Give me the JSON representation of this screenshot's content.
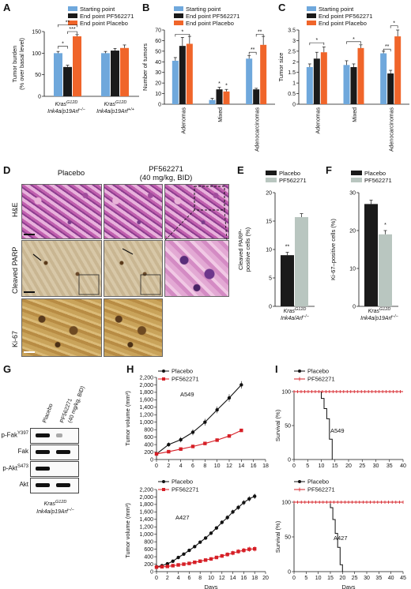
{
  "panels": {
    "A": "A",
    "B": "B",
    "C": "C",
    "D": "D",
    "E": "E",
    "F": "F",
    "G": "G",
    "H": "H",
    "I": "I"
  },
  "colors": {
    "starting": "#6fa8dc",
    "pf": "#1a1a1a",
    "placebo": "#f0652a",
    "pf_grey": "#b9c6c0",
    "placebo_line": "#111111",
    "pf_line": "#d61f26"
  },
  "legend_abc": [
    "Starting point",
    "End point PF562271",
    "End point Placebo"
  ],
  "legend_ef": [
    "Placebo",
    "PF562271"
  ],
  "legend_hi": [
    "Placebo",
    "PF562271"
  ],
  "genotype": {
    "kras": "Kras",
    "g12d": "G12D",
    "ink_null": "Ink4a/p19Arf",
    "ink_null_sup": "−/−",
    "ink_wt_sup": "+/+",
    "arf_null": "Ink4a/Arf"
  },
  "panelD": {
    "col_placebo": "Placebo",
    "col_pf": "PF562271",
    "col_pf_dose": "(40 mg/kg, BID)",
    "rows": [
      "H&E",
      "Cleaved PARP",
      "Ki-67"
    ]
  },
  "panelG": {
    "lanes": [
      "Placebo",
      "PF562271",
      "(40 mg/kg, BID)"
    ],
    "blots": [
      "p-Fak",
      "Fak",
      "p-Akt",
      "Akt"
    ],
    "blot_sups": [
      "Y397",
      "",
      "S473",
      ""
    ]
  },
  "chart_data": [
    {
      "id": "A",
      "type": "bar",
      "ylabel": "Tumor burden",
      "ylabel2": "(% over basal level)",
      "ylim": [
        0,
        150
      ],
      "yticks": [
        0,
        50,
        100,
        150
      ],
      "categories": [
        "Kras G12D Ink4a/p19Arf −/−",
        "Kras G12D Ink4a/p19Arf +/+"
      ],
      "series": [
        {
          "name": "Starting point",
          "values": [
            100,
            100
          ],
          "err": [
            4,
            4
          ]
        },
        {
          "name": "End point PF562271",
          "values": [
            68,
            106
          ],
          "err": [
            4,
            5
          ]
        },
        {
          "name": "End point Placebo",
          "values": [
            139,
            112
          ],
          "err": [
            4,
            7
          ]
        }
      ],
      "annotations": [
        "*",
        "***",
        "**"
      ]
    },
    {
      "id": "B",
      "type": "bar",
      "ylabel": "Number of tumors",
      "ylim": [
        0,
        70
      ],
      "yticks": [
        0,
        10,
        20,
        30,
        40,
        50,
        60,
        70
      ],
      "categories": [
        "Adenomas",
        "Mixed",
        "Adenocarcinomas"
      ],
      "series": [
        {
          "name": "Starting point",
          "values": [
            41,
            4,
            43
          ],
          "err": [
            3,
            1.5,
            3
          ]
        },
        {
          "name": "End point PF562271",
          "values": [
            55,
            14,
            14
          ],
          "err": [
            8,
            2,
            1
          ]
        },
        {
          "name": "End point Placebo",
          "values": [
            57,
            12,
            56
          ],
          "err": [
            7,
            2,
            8
          ]
        }
      ],
      "annotations": [
        "*",
        "*",
        "*",
        "**",
        "**"
      ]
    },
    {
      "id": "C",
      "type": "bar",
      "ylabel": "Tumor size",
      "ylim": [
        0,
        3.5
      ],
      "yticks": [
        0,
        0.5,
        1,
        1.5,
        2,
        2.5,
        3,
        3.5
      ],
      "yticklabels": [
        "0",
        "0.5",
        "1",
        "1.5",
        "2",
        "2.5",
        "3",
        "3.5"
      ],
      "categories": [
        "Adenomas",
        "Mixed",
        "Adenocarcinomas"
      ],
      "series": [
        {
          "name": "Starting point",
          "values": [
            1.75,
            1.85,
            2.4
          ],
          "err": [
            0.15,
            0.2,
            0.1
          ]
        },
        {
          "name": "End point PF562271",
          "values": [
            2.15,
            1.75,
            1.45
          ],
          "err": [
            0.3,
            0.15,
            0.15
          ]
        },
        {
          "name": "End point Placebo",
          "values": [
            2.45,
            2.65,
            3.2
          ],
          "err": [
            0.25,
            0.15,
            0.3
          ]
        }
      ],
      "annotations": [
        "*",
        "*",
        "**",
        "*"
      ]
    },
    {
      "id": "E",
      "type": "bar",
      "ylabel": "Cleaved PARP-",
      "ylabel2": "positive cells (%)",
      "ylim": [
        0,
        20
      ],
      "yticks": [
        0,
        5,
        10,
        15,
        20
      ],
      "categories": [
        "Kras G12D Ink4a/Arf −/−"
      ],
      "series": [
        {
          "name": "Placebo",
          "values": [
            9
          ],
          "err": [
            0.5
          ]
        },
        {
          "name": "PF562271",
          "values": [
            15.7
          ],
          "err": [
            0.6
          ]
        }
      ],
      "annotations": [
        "**"
      ]
    },
    {
      "id": "F",
      "type": "bar",
      "ylabel": "Ki-67–positive cells (%)",
      "ylim": [
        0,
        30
      ],
      "yticks": [
        0,
        10,
        20,
        30
      ],
      "categories": [
        "Kras G12D Ink4a/p19Arf −/−"
      ],
      "series": [
        {
          "name": "Placebo",
          "values": [
            27
          ],
          "err": [
            1
          ]
        },
        {
          "name": "PF562271",
          "values": [
            19
          ],
          "err": [
            1
          ]
        }
      ],
      "annotations": [
        "*"
      ]
    },
    {
      "id": "H1",
      "type": "line",
      "ylabel": "Tumor volume (mm³)",
      "annotation": "A549",
      "xlim": [
        0,
        18
      ],
      "xticks": [
        0,
        2,
        4,
        6,
        8,
        10,
        12,
        14,
        16,
        18
      ],
      "ylim": [
        0,
        2200
      ],
      "yticks": [
        0,
        200,
        400,
        600,
        800,
        1000,
        1200,
        1400,
        1600,
        1800,
        2000,
        2200
      ],
      "yticklabels": [
        "0",
        "200",
        "400",
        "600",
        "800",
        "1,000",
        "1,200",
        "1,400",
        "1,600",
        "1,800",
        "2,000",
        "2,200"
      ],
      "series": [
        {
          "name": "Placebo",
          "x": [
            0,
            2,
            4,
            6,
            8,
            10,
            12,
            14
          ],
          "y": [
            150,
            400,
            530,
            730,
            1000,
            1330,
            1650,
            2000
          ],
          "err": [
            40,
            60,
            70,
            80,
            90,
            90,
            100,
            100
          ]
        },
        {
          "name": "PF562271",
          "x": [
            0,
            2,
            4,
            6,
            8,
            10,
            12,
            14
          ],
          "y": [
            150,
            210,
            280,
            350,
            430,
            520,
            630,
            780
          ],
          "err": [
            20,
            20,
            25,
            30,
            30,
            30,
            35,
            40
          ]
        }
      ]
    },
    {
      "id": "H2",
      "type": "line",
      "xlabel": "Days",
      "ylabel": "Tumor volume (mm³)",
      "annotation": "A427",
      "xlim": [
        0,
        20
      ],
      "xticks": [
        0,
        2,
        4,
        6,
        8,
        10,
        12,
        14,
        16,
        18,
        20
      ],
      "ylim": [
        0,
        2200
      ],
      "yticks": [
        0,
        200,
        400,
        600,
        800,
        1000,
        1200,
        1400,
        1600,
        1800,
        2000,
        2200
      ],
      "yticklabels": [
        "0",
        "200",
        "400",
        "600",
        "800",
        "1,000",
        "1,200",
        "1,400",
        "1,600",
        "1,800",
        "2,000",
        "2,200"
      ],
      "series": [
        {
          "name": "Placebo",
          "x": [
            0,
            1,
            2,
            3,
            4,
            5,
            6,
            7,
            8,
            9,
            10,
            11,
            12,
            13,
            14,
            15,
            16,
            17,
            18
          ],
          "y": [
            130,
            160,
            210,
            280,
            380,
            470,
            570,
            670,
            790,
            900,
            1030,
            1170,
            1320,
            1450,
            1600,
            1720,
            1850,
            1950,
            2020
          ],
          "err": [
            20,
            20,
            25,
            25,
            30,
            30,
            35,
            40,
            40,
            45,
            50,
            50,
            55,
            60,
            60,
            65,
            65,
            70,
            70
          ]
        },
        {
          "name": "PF562271",
          "x": [
            0,
            1,
            2,
            3,
            4,
            5,
            6,
            7,
            8,
            9,
            10,
            11,
            12,
            13,
            14,
            15,
            16,
            17,
            18
          ],
          "y": [
            120,
            130,
            140,
            160,
            180,
            200,
            220,
            250,
            280,
            310,
            340,
            380,
            420,
            460,
            500,
            540,
            570,
            600,
            610
          ],
          "err": [
            20,
            20,
            20,
            25,
            25,
            25,
            30,
            30,
            35,
            40,
            40,
            45,
            50,
            55,
            60,
            60,
            65,
            70,
            70
          ]
        }
      ]
    },
    {
      "id": "I1",
      "type": "line",
      "ylabel": "Survival (%)",
      "annotation": "A549",
      "xlim": [
        0,
        40
      ],
      "xticks": [
        0,
        5,
        10,
        15,
        20,
        25,
        30,
        35,
        40
      ],
      "ylim": [
        0,
        100
      ],
      "yticks": [
        0,
        50,
        100
      ],
      "series": [
        {
          "name": "Placebo",
          "x": [
            0,
            10,
            10,
            11,
            11,
            12,
            12,
            13,
            13,
            14,
            14
          ],
          "y": [
            100,
            100,
            90,
            90,
            75,
            75,
            60,
            60,
            30,
            30,
            0
          ]
        },
        {
          "name": "PF562271",
          "x": [
            0,
            40
          ],
          "y": [
            100,
            100
          ]
        }
      ]
    },
    {
      "id": "I2",
      "type": "line",
      "xlabel": "Days",
      "ylabel": "Survival (%)",
      "annotation": "A427",
      "xlim": [
        0,
        45
      ],
      "xticks": [
        0,
        5,
        10,
        15,
        20,
        25,
        30,
        35,
        40,
        45
      ],
      "ylim": [
        0,
        100
      ],
      "yticks": [
        0,
        50,
        100
      ],
      "series": [
        {
          "name": "Placebo",
          "x": [
            0,
            15,
            15,
            16,
            16,
            17,
            17,
            18,
            18,
            19,
            19,
            20,
            20
          ],
          "y": [
            100,
            100,
            92,
            92,
            75,
            75,
            55,
            55,
            35,
            35,
            10,
            10,
            0
          ]
        },
        {
          "name": "PF562271",
          "x": [
            0,
            45
          ],
          "y": [
            100,
            100
          ]
        }
      ]
    }
  ]
}
